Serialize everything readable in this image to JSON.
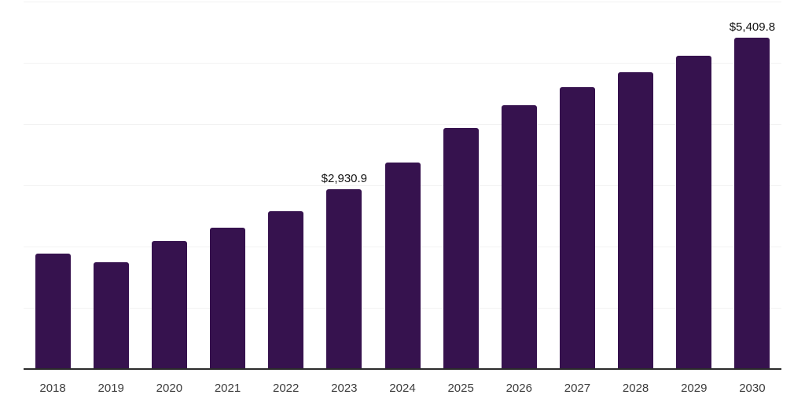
{
  "chart_data": {
    "type": "bar",
    "title": "",
    "xlabel": "",
    "ylabel": "",
    "categories": [
      "2018",
      "2019",
      "2020",
      "2021",
      "2022",
      "2023",
      "2024",
      "2025",
      "2026",
      "2027",
      "2028",
      "2029",
      "2030"
    ],
    "values": [
      1885,
      1745,
      2090,
      2310,
      2575,
      2930.9,
      3370,
      3935,
      4310,
      4600,
      4845,
      5115,
      5409.8
    ],
    "ylim": [
      0,
      6000
    ],
    "gridline_step": 1000,
    "grid": true,
    "legend": false,
    "y_axis_labels_visible": false,
    "annotations": [
      {
        "category": "2023",
        "text": "$2,930.9"
      },
      {
        "category": "2030",
        "text": "$5,409.8"
      }
    ],
    "colors": {
      "bar": "#36124E",
      "gridline": "#f2f2f2",
      "axis_line": "#2b2b2b",
      "tick_label": "#3d3d3d",
      "annotation": "#111111",
      "background": "#ffffff"
    }
  }
}
